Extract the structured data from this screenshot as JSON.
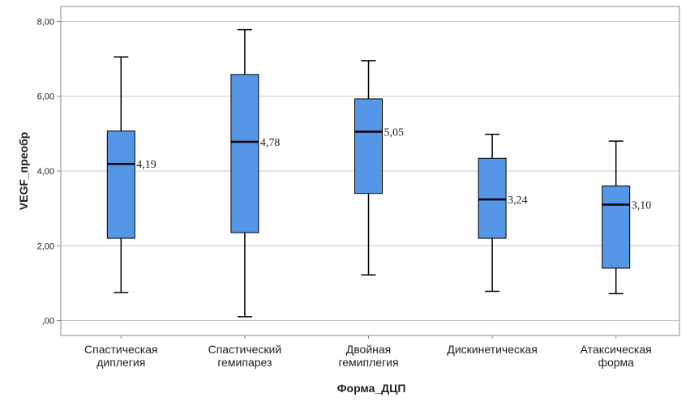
{
  "chart_data": {
    "type": "boxplot",
    "title": "",
    "xlabel": "Форма_ДЦП",
    "ylabel": "VEGF_преобр",
    "ylim": [
      -0.4,
      8.4
    ],
    "yticks": [
      {
        "value": 0,
        "label": ",00"
      },
      {
        "value": 2,
        "label": "2,00"
      },
      {
        "value": 4,
        "label": "4,00"
      },
      {
        "value": 6,
        "label": "6,00"
      },
      {
        "value": 8,
        "label": "8,00"
      }
    ],
    "grid": true,
    "box_color": "#5596e6",
    "categories": [
      {
        "label_lines": [
          "Спастическая",
          "диплегия"
        ],
        "min": 0.75,
        "q1": 2.2,
        "median": 4.19,
        "q3": 5.07,
        "max": 7.05,
        "median_label": "4,19"
      },
      {
        "label_lines": [
          "Спастический",
          "гемипарез"
        ],
        "min": 0.1,
        "q1": 2.35,
        "median": 4.78,
        "q3": 6.58,
        "max": 7.78,
        "median_label": "4,78"
      },
      {
        "label_lines": [
          "Двойная",
          "гемиплегия"
        ],
        "min": 1.22,
        "q1": 3.4,
        "median": 5.05,
        "q3": 5.93,
        "max": 6.95,
        "median_label": "5,05"
      },
      {
        "label_lines": [
          "Дискинетическая"
        ],
        "min": 0.78,
        "q1": 2.2,
        "median": 3.24,
        "q3": 4.34,
        "max": 4.98,
        "median_label": "3,24"
      },
      {
        "label_lines": [
          "Атаксическая",
          "форма"
        ],
        "min": 0.72,
        "q1": 1.4,
        "median": 3.1,
        "q3": 3.6,
        "max": 4.8,
        "median_label": "3,10"
      }
    ]
  }
}
